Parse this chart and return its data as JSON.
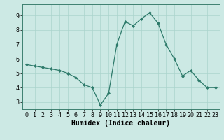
{
  "x": [
    0,
    1,
    2,
    3,
    4,
    5,
    6,
    7,
    8,
    9,
    10,
    11,
    12,
    13,
    14,
    15,
    16,
    17,
    18,
    19,
    20,
    21,
    22,
    23
  ],
  "y": [
    5.6,
    5.5,
    5.4,
    5.3,
    5.2,
    5.0,
    4.7,
    4.2,
    4.0,
    2.8,
    3.6,
    7.0,
    8.6,
    8.3,
    8.8,
    9.2,
    8.5,
    7.0,
    6.0,
    4.8,
    5.2,
    4.5,
    4.0,
    4.0
  ],
  "line_color": "#2d7a6a",
  "marker": "D",
  "marker_size": 2.0,
  "line_width": 0.9,
  "bg_color": "#cce9e4",
  "grid_color": "#aad4cc",
  "xlabel": "Humidex (Indice chaleur)",
  "xlabel_fontsize": 7,
  "tick_fontsize": 6,
  "ylim": [
    2.5,
    9.8
  ],
  "xlim": [
    -0.5,
    23.5
  ],
  "yticks": [
    3,
    4,
    5,
    6,
    7,
    8,
    9
  ],
  "xticks": [
    0,
    1,
    2,
    3,
    4,
    5,
    6,
    7,
    8,
    9,
    10,
    11,
    12,
    13,
    14,
    15,
    16,
    17,
    18,
    19,
    20,
    21,
    22,
    23
  ]
}
